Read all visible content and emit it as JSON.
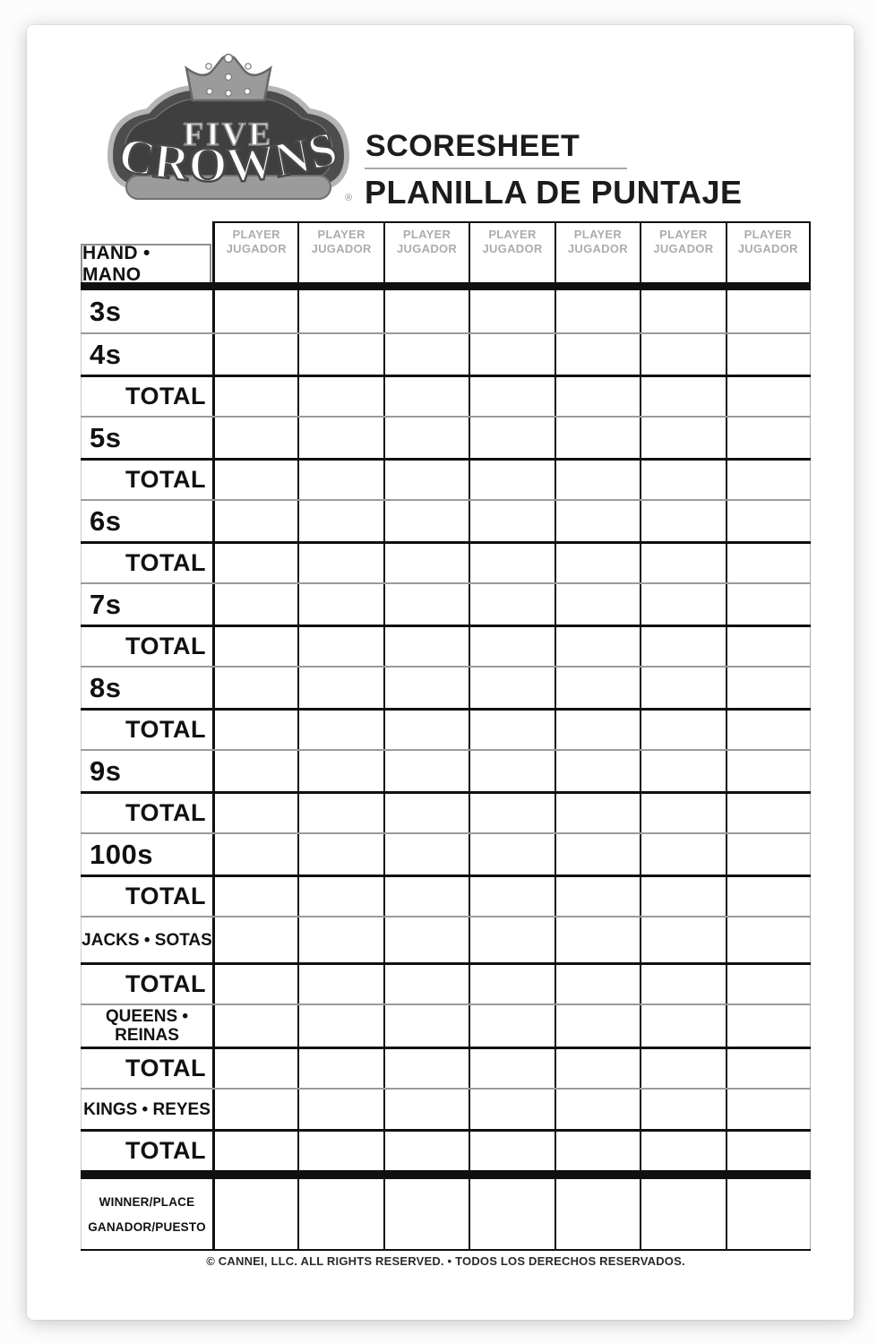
{
  "logo": {
    "line1": "FIVE",
    "line2": "CROWNS",
    "registered": "®"
  },
  "header": {
    "title_en": "SCORESHEET",
    "title_es": "PLANILLA DE PUNTAJE"
  },
  "table": {
    "hand_header": "HAND • MANO",
    "player_header_line1": "PLAYER",
    "player_header_line2": "JUGADOR",
    "num_player_columns": 7,
    "rows": [
      {
        "label": "3s",
        "type": "rank",
        "sep": "none"
      },
      {
        "label": "4s",
        "type": "rank",
        "sep": "gray"
      },
      {
        "label": "TOTAL",
        "type": "total",
        "sep": "black"
      },
      {
        "label": "5s",
        "type": "rank",
        "sep": "gray"
      },
      {
        "label": "TOTAL",
        "type": "total",
        "sep": "black"
      },
      {
        "label": "6s",
        "type": "rank",
        "sep": "gray"
      },
      {
        "label": "TOTAL",
        "type": "total",
        "sep": "black"
      },
      {
        "label": "7s",
        "type": "rank",
        "sep": "gray"
      },
      {
        "label": "TOTAL",
        "type": "total",
        "sep": "black"
      },
      {
        "label": "8s",
        "type": "rank",
        "sep": "gray"
      },
      {
        "label": "TOTAL",
        "type": "total",
        "sep": "black"
      },
      {
        "label": "9s",
        "type": "rank",
        "sep": "gray"
      },
      {
        "label": "TOTAL",
        "type": "total",
        "sep": "black"
      },
      {
        "label": "100s",
        "type": "rank",
        "sep": "gray"
      },
      {
        "label": "TOTAL",
        "type": "total",
        "sep": "black"
      },
      {
        "label": "JACKS • SOTAS",
        "type": "face",
        "sep": "gray"
      },
      {
        "label": "TOTAL",
        "type": "total",
        "sep": "black"
      },
      {
        "label": "QUEENS •",
        "label2": "REINAS",
        "type": "face",
        "sep": "gray"
      },
      {
        "label": "TOTAL",
        "type": "total",
        "sep": "black"
      },
      {
        "label": "KINGS • REYES",
        "type": "face",
        "sep": "gray"
      },
      {
        "label": "TOTAL",
        "type": "total",
        "sep": "black"
      }
    ],
    "winner_row": {
      "line1": "WINNER/PLACE",
      "line2": "GANADOR/PUESTO"
    }
  },
  "footer": {
    "copyright": "© CANNEI, LLC. ALL RIGHTS RESERVED. • TODOS LOS DERECHOS RESERVADOS."
  },
  "colors": {
    "line_black": "#101010",
    "line_gray": "#9b9b9b",
    "player_header_gray": "#aaadb0",
    "logo_dark": "#4d4d4d",
    "logo_mid": "#9b9b9b",
    "logo_light": "#b5b5b5"
  }
}
